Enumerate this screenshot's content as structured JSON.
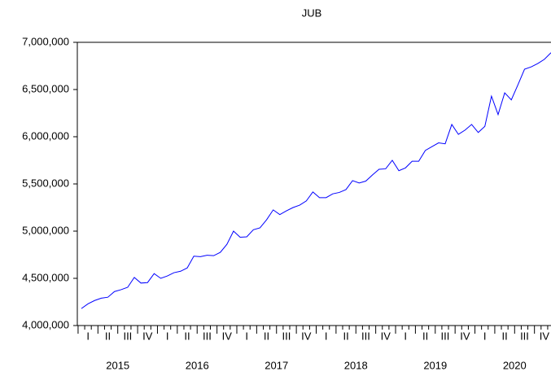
{
  "chart_data": {
    "type": "line",
    "title": "JUB",
    "categories": [
      "I",
      null,
      null,
      "II",
      null,
      null,
      "III",
      null,
      null,
      "IV",
      null,
      null,
      "I",
      null,
      null,
      "II",
      null,
      null,
      "III",
      null,
      null,
      "IV",
      null,
      null,
      "I",
      null,
      null,
      "II",
      null,
      null,
      "III",
      null,
      null,
      "IV",
      null,
      null,
      "I",
      null,
      null,
      "II",
      null,
      null,
      "III",
      null,
      null,
      "IV",
      null,
      null,
      "I",
      null,
      null,
      "II",
      null,
      null,
      "III",
      null,
      null,
      "IV",
      null,
      null,
      "I",
      null,
      null,
      "II",
      null,
      null,
      "III",
      null,
      null,
      "IV",
      null,
      null
    ],
    "years": [
      "2015",
      "2016",
      "2017",
      "2018",
      "2019",
      "2020"
    ],
    "series": [
      {
        "name": "JUB",
        "color": "#0000ff",
        "values": [
          4180000,
          4230000,
          4265000,
          4290000,
          4300000,
          4360000,
          4380000,
          4405000,
          4510000,
          4450000,
          4455000,
          4550000,
          4500000,
          4525000,
          4560000,
          4575000,
          4610000,
          4735000,
          4730000,
          4745000,
          4740000,
          4775000,
          4860000,
          5000000,
          4935000,
          4940000,
          5015000,
          5035000,
          5120000,
          5225000,
          5175000,
          5215000,
          5250000,
          5275000,
          5320000,
          5415000,
          5355000,
          5355000,
          5395000,
          5410000,
          5440000,
          5535000,
          5510000,
          5530000,
          5595000,
          5655000,
          5660000,
          5750000,
          5640000,
          5670000,
          5740000,
          5740000,
          5855000,
          5895000,
          5935000,
          5925000,
          6130000,
          6025000,
          6070000,
          6130000,
          6045000,
          6110000,
          6430000,
          6235000,
          6465000,
          6390000,
          6550000,
          6715000,
          6740000,
          6775000,
          6820000,
          6890000
        ]
      }
    ],
    "ylim": [
      4000000,
      7000000
    ],
    "yticks": [
      {
        "value": 4000000,
        "label": "4,000,000"
      },
      {
        "value": 4500000,
        "label": "4,500,000"
      },
      {
        "value": 5000000,
        "label": "5,000,000"
      },
      {
        "value": 5500000,
        "label": "5,500,000"
      },
      {
        "value": 6000000,
        "label": "6,000,000"
      },
      {
        "value": 6500000,
        "label": "6,500,000"
      },
      {
        "value": 7000000,
        "label": "7,000,000"
      }
    ],
    "grid": false
  }
}
